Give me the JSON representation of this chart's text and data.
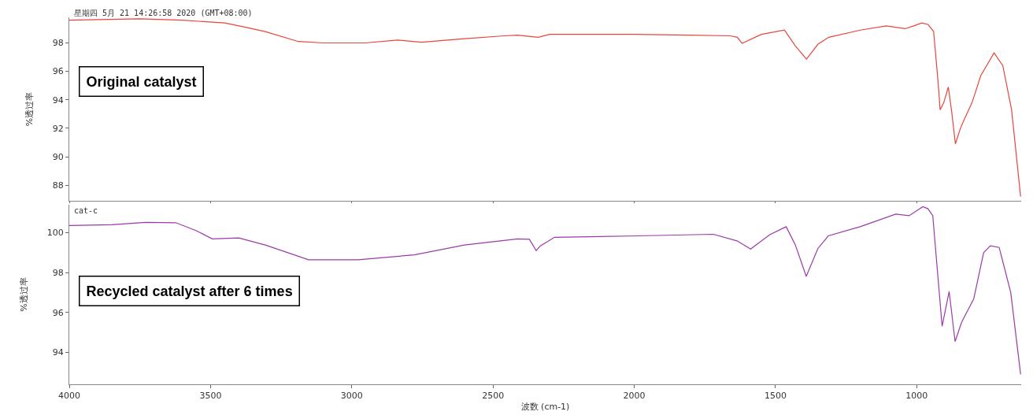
{
  "chart_data": [
    {
      "type": "line",
      "ylabel": "%透过率",
      "annotations": [
        "星期四 5月 21 14:26:58 2020 (GMT+08:00)",
        "Original catalyst"
      ],
      "xlim": [
        4000,
        630
      ],
      "ylim": [
        86.9,
        99.8
      ],
      "yticks": [
        88,
        90,
        92,
        94,
        96,
        98
      ],
      "tick_labels": "y",
      "marker": "none",
      "line_style": "solid",
      "series": [
        {
          "color": "#e8453c",
          "x": [
            4000,
            3752,
            3600,
            3450,
            3376,
            3306,
            3189,
            3100,
            2954,
            2837,
            2753,
            2600,
            2460,
            2413,
            2340,
            2300,
            2200,
            2000,
            1800,
            1660,
            1635,
            1618,
            1550,
            1468,
            1430,
            1390,
            1350,
            1311,
            1200,
            1108,
            1041,
            1010,
            982,
            960,
            940,
            924,
            917,
            904,
            888,
            875,
            863,
            845,
            832,
            804,
            773,
            726,
            695,
            664,
            632
          ],
          "values": [
            99.6,
            99.7,
            99.6,
            99.4,
            99.1,
            98.8,
            98.1,
            98.0,
            98.0,
            98.2,
            98.05,
            98.3,
            98.5,
            98.55,
            98.4,
            98.6,
            98.6,
            98.6,
            98.55,
            98.5,
            98.4,
            97.97,
            98.6,
            98.9,
            97.8,
            96.86,
            97.9,
            98.4,
            98.9,
            99.2,
            99.0,
            99.2,
            99.4,
            99.3,
            98.8,
            95.2,
            93.3,
            93.8,
            94.9,
            93.0,
            90.9,
            92.0,
            92.6,
            93.8,
            95.7,
            97.3,
            96.4,
            93.3,
            87.2
          ]
        }
      ]
    },
    {
      "type": "line",
      "xlabel": "波数 (cm-1)",
      "ylabel": "%透过率",
      "annotations": [
        "cat-c",
        "Recycled catalyst after 6 times"
      ],
      "xlim": [
        4000,
        630
      ],
      "ylim": [
        92.4,
        101.4
      ],
      "xticks": [
        4000,
        3500,
        3000,
        2500,
        2000,
        1500,
        1000
      ],
      "yticks": [
        94,
        96,
        98,
        100
      ],
      "marker": "none",
      "line_style": "solid",
      "series": [
        {
          "color": "#9b3aa8",
          "x": [
            4000,
            3850,
            3729,
            3623,
            3550,
            3494,
            3400,
            3306,
            3153,
            2977,
            2778,
            2601,
            2413,
            2371,
            2347,
            2332,
            2282,
            1982,
            1720,
            1636,
            1588,
            1520,
            1462,
            1430,
            1391,
            1350,
            1313,
            1200,
            1074,
            1027,
            978,
            960,
            943,
            910,
            885,
            864,
            841,
            798,
            763,
            739,
            708,
            667,
            632
          ],
          "values": [
            100.36,
            100.4,
            100.52,
            100.5,
            100.1,
            99.69,
            99.74,
            99.38,
            98.64,
            98.64,
            98.89,
            99.38,
            99.69,
            99.67,
            99.1,
            99.34,
            99.77,
            99.84,
            99.92,
            99.59,
            99.18,
            99.9,
            100.3,
            99.4,
            97.81,
            99.2,
            99.84,
            100.3,
            100.93,
            100.85,
            101.3,
            101.2,
            100.85,
            95.31,
            97.05,
            94.54,
            95.51,
            96.68,
            99.0,
            99.34,
            99.26,
            97.0,
            92.9
          ]
        }
      ]
    }
  ]
}
